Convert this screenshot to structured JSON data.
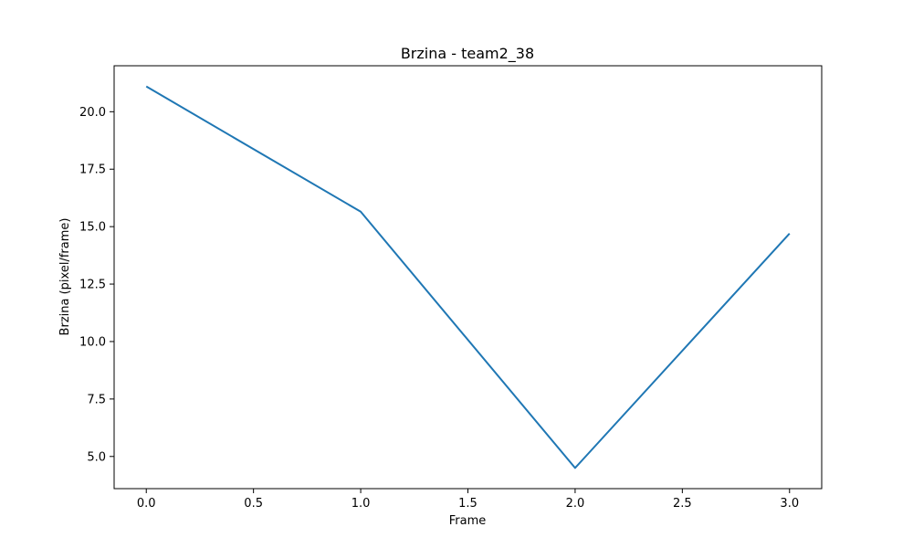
{
  "chart_data": {
    "type": "line",
    "title": "Brzina - team2_38",
    "xlabel": "Frame",
    "ylabel": "Brzina (pixel/frame)",
    "x": [
      0,
      1,
      2,
      3
    ],
    "series": [
      {
        "values": [
          21.1,
          15.65,
          4.5,
          14.7
        ],
        "color": "#1f77b4"
      }
    ],
    "xlim": [
      -0.15,
      3.15
    ],
    "ylim": [
      3.6,
      22.0
    ],
    "xticks": [
      0.0,
      0.5,
      1.0,
      1.5,
      2.0,
      2.5,
      3.0
    ],
    "xtick_labels": [
      "0.0",
      "0.5",
      "1.0",
      "1.5",
      "2.0",
      "2.5",
      "3.0"
    ],
    "yticks": [
      5.0,
      7.5,
      10.0,
      12.5,
      15.0,
      17.5,
      20.0
    ],
    "ytick_labels": [
      "5.0",
      "7.5",
      "10.0",
      "12.5",
      "15.0",
      "17.5",
      "20.0"
    ],
    "grid": false,
    "legend": "none"
  }
}
